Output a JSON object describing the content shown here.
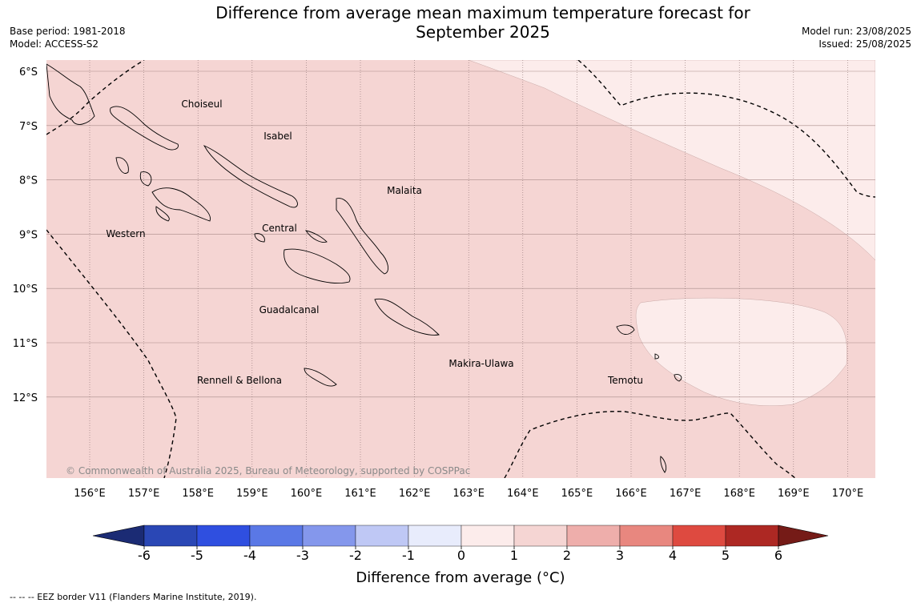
{
  "title_line1": "Difference from average mean maximum temperature forecast for",
  "title_line2": "September 2025",
  "base_period": "Base period: 1981-2018",
  "model": "Model: ACCESS-S2",
  "model_run": "Model run: 23/08/2025",
  "issued": "Issued: 25/08/2025",
  "copyright": "© Commonwealth of Australia 2025, Bureau of Meteorology, supported by COSPPac",
  "lat_labels": [
    "6°S",
    "7°S",
    "8°S",
    "9°S",
    "10°S",
    "11°S",
    "12°S"
  ],
  "lon_labels": [
    "156°E",
    "157°E",
    "158°E",
    "159°E",
    "160°E",
    "161°E",
    "162°E",
    "163°E",
    "164°E",
    "165°E",
    "166°E",
    "167°E",
    "168°E",
    "169°E",
    "170°E"
  ],
  "provinces": [
    "Choiseul",
    "Isabel",
    "Malaita",
    "Western",
    "Central",
    "Guadalcanal",
    "Makira-Ulawa",
    "Temotu",
    "Rennell & Bellona"
  ],
  "legend": {
    "label": "Difference from average (",
    "label_unit": "°C)",
    "ticks": [
      "-6",
      "-5",
      "-4",
      "-3",
      "-2",
      "-1",
      "0",
      "1",
      "2",
      "3",
      "4",
      "5",
      "6"
    ],
    "colors": [
      "#1b2b74",
      "#2a47b5",
      "#2f4fe0",
      "#5a78e6",
      "#8497ec",
      "#bfc8f5",
      "#e8ecfc",
      "#fceceb",
      "#f5d5d3",
      "#eeaeab",
      "#e8877f",
      "#de4a40",
      "#ad2823",
      "#751b17"
    ]
  },
  "footnote": "--  --  -- EEZ border V11 (Flanders Marine Institute, 2019).",
  "colors": {
    "anomaly_1_2": "#f5d5d3",
    "anomaly_0_1": "#fceceb",
    "coast": "#000000",
    "eez": "#000000"
  }
}
